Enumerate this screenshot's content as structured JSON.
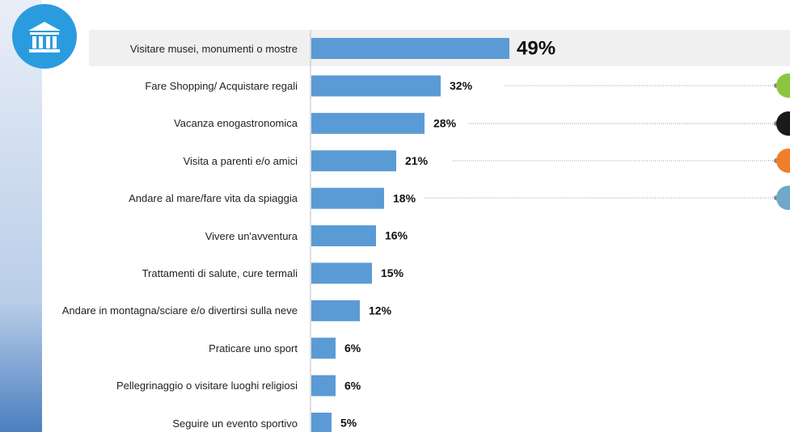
{
  "chart_data": {
    "type": "bar",
    "orientation": "horizontal",
    "color": "#5b9bd5",
    "categories": [
      "Visitare musei, monumenti o mostre",
      "Fare Shopping/ Acquistare regali",
      "Vacanza enogastronomica",
      "Visita a parenti e/o amici",
      "Andare al mare/fare vita da spiaggia",
      "Vivere un'avventura",
      "Trattamenti di salute, cure termali",
      "Andare in montagna/sciare e/o divertirsi sulla neve",
      "Praticare uno sport",
      "Pellegrinaggio o visitare luoghi religiosi",
      "Seguire un evento sportivo"
    ],
    "values": [
      49,
      32,
      28,
      21,
      18,
      16,
      15,
      12,
      6,
      6,
      5
    ],
    "value_labels": [
      "49%",
      "32%",
      "28%",
      "21%",
      "18%",
      "16%",
      "15%",
      "12%",
      "6%",
      "6%",
      "5%"
    ]
  }
}
